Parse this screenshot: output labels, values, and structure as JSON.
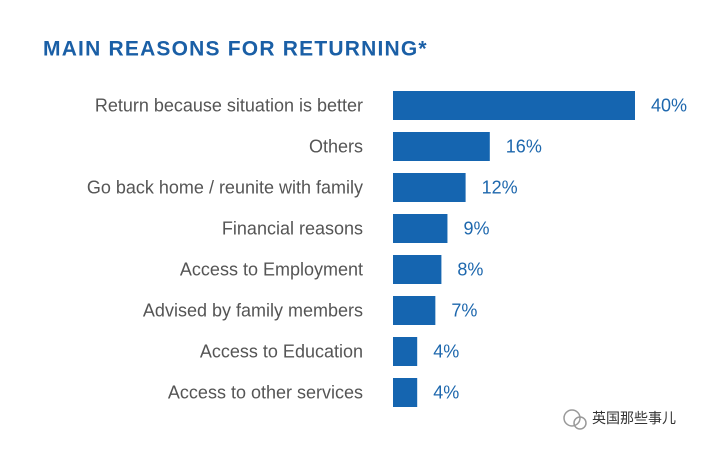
{
  "chart_data": {
    "type": "bar",
    "orientation": "horizontal",
    "title": "MAIN REASONS FOR RETURNING*",
    "categories": [
      "Return because situation is better",
      "Others",
      "Go back home / reunite with family",
      "Financial reasons",
      "Access to Employment",
      "Advised by family members",
      "Access to Education",
      "Access to other services"
    ],
    "values": [
      40,
      16,
      12,
      9,
      8,
      7,
      4,
      4
    ],
    "value_labels": [
      "40%",
      "16%",
      "12%",
      "9%",
      "8%",
      "7%",
      "4%",
      "4%"
    ],
    "color": "#1565b0"
  },
  "watermark": "英国那些事儿"
}
